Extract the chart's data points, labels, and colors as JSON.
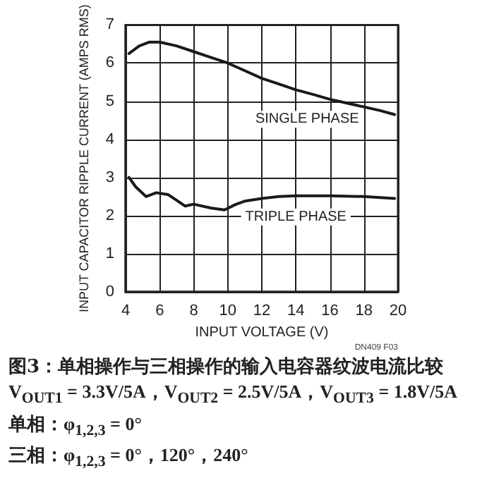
{
  "chart_data": {
    "type": "line",
    "title": "图3：单相操作与三相操作的输入电容器纹波电流比较",
    "subtitle": "V$_{OUT1}$ = 3.3V/5A，V$_{OUT2}$ = 2.5V/5A，V$_{OUT3}$ = 1.8V/5A\n单相：φ$_{1,2,3}$ = 0°\n三相：φ$_{1,2,3}$ = 0°，120°，240°",
    "xlabel": "INPUT VOLTAGE (V)",
    "ylabel": "INPUT CAPACITOR RIPPLE CURRENT (AMPS RMS)",
    "annotations": [
      "DN409 F03"
    ],
    "series": [
      {
        "name": "SINGLE PHASE",
        "color": "#1a1a1a",
        "x": [
          4.2,
          4.8,
          5.4,
          6,
          7,
          8,
          9,
          10,
          11,
          12,
          13,
          14,
          15,
          16,
          17,
          18,
          19,
          19.8
        ],
        "values": [
          6.25,
          6.45,
          6.55,
          6.55,
          6.45,
          6.3,
          6.15,
          6,
          5.8,
          5.6,
          5.45,
          5.3,
          5.18,
          5.05,
          4.95,
          4.85,
          4.75,
          4.65
        ]
      },
      {
        "name": "TRIPLE PHASE",
        "color": "#1a1a1a",
        "x": [
          4.2,
          4.6,
          5.2,
          5.8,
          6.5,
          7,
          7.5,
          8,
          9,
          9.8,
          10.5,
          11,
          12,
          13,
          14,
          16,
          18,
          19.8
        ],
        "values": [
          3,
          2.75,
          2.5,
          2.6,
          2.55,
          2.4,
          2.25,
          2.3,
          2.2,
          2.15,
          2.3,
          2.38,
          2.45,
          2.5,
          2.52,
          2.52,
          2.5,
          2.45
        ]
      }
    ],
    "xlim": [
      4,
      20
    ],
    "xticks": [
      4,
      6,
      8,
      10,
      12,
      14,
      16,
      18,
      20
    ],
    "ylim": [
      0,
      7
    ],
    "yticks": [
      0,
      1,
      2,
      3,
      4,
      5,
      6,
      7
    ],
    "grid": true,
    "legend": false,
    "marker": "none",
    "line_style": "solid"
  }
}
